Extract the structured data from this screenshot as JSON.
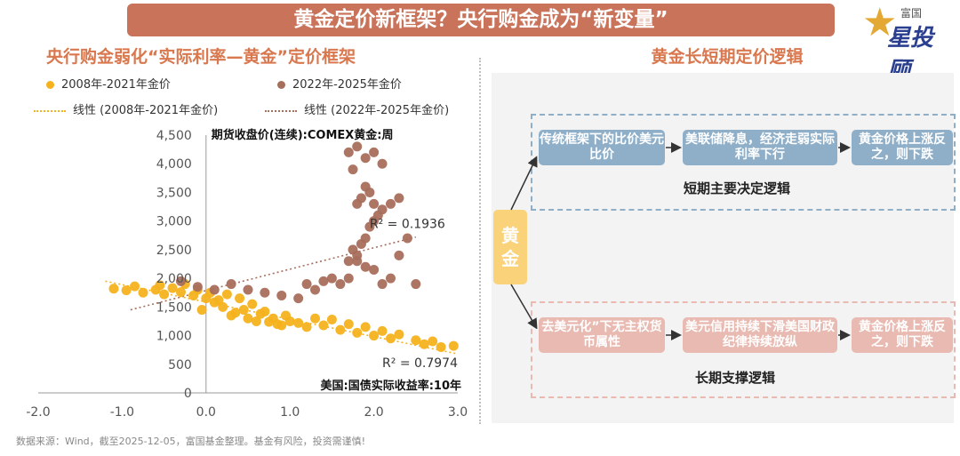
{
  "banner_title": "黄金定价新框架？央行购金成为“新变量”",
  "logo": {
    "line1": "富国",
    "line2": "星投顾"
  },
  "left_title": "央行购金弱化“实际利率—黄金”定价框架",
  "legend": {
    "series1": "2008年-2021年金价",
    "series2": "2022年-2025年金价",
    "trend1": "线性 (2008年-2021年金价)",
    "trend2": "线性 (2022年-2025年金价)"
  },
  "colors": {
    "series1": "#f6b21d",
    "series2": "#a86e5c",
    "banner": "#c8735a",
    "blue_box": "#8fafc9",
    "pink_box": "#e8bab1"
  },
  "chart_data": {
    "type": "scatter",
    "xlabel": "美国:国债实际收益率:10年",
    "ylabel": "期货收盘价(连续):COMEX黄金:周",
    "xlim": [
      -2.0,
      3.0
    ],
    "ylim": [
      0,
      4500
    ],
    "x_ticks": [
      -2.0,
      -1.0,
      0.0,
      1.0,
      2.0,
      3.0
    ],
    "x_tick_labels": [
      "-2.0",
      "-1.0",
      "0.0",
      "1.0",
      "2.0",
      "3.0"
    ],
    "y_ticks": [
      0,
      500,
      1000,
      1500,
      2000,
      2500,
      3000,
      3500,
      4000,
      4500
    ],
    "y_tick_labels": [
      "0",
      "500",
      "1,000",
      "1,500",
      "2,000",
      "2,500",
      "3,000",
      "3,500",
      "4,000",
      "4,500"
    ],
    "series": [
      {
        "name": "2008年-2021年金价",
        "color": "#f6b21d",
        "x": [
          -1.1,
          -0.95,
          -0.85,
          -0.75,
          -0.6,
          -0.55,
          -0.5,
          -0.4,
          -0.3,
          -0.25,
          -0.15,
          -0.1,
          0.0,
          0.05,
          0.1,
          0.2,
          0.25,
          0.35,
          0.4,
          0.5,
          0.55,
          0.6,
          0.7,
          0.8,
          0.85,
          0.95,
          1.0,
          1.1,
          1.2,
          1.3,
          1.4,
          1.5,
          1.6,
          1.7,
          1.8,
          1.9,
          2.0,
          2.1,
          2.2,
          2.3,
          2.5,
          2.6,
          2.7,
          2.8,
          2.95,
          0.3,
          0.45,
          0.65,
          0.75,
          -0.05,
          0.15,
          0.9
        ],
        "y": [
          1820,
          1790,
          1860,
          1750,
          1800,
          1880,
          1720,
          1830,
          1760,
          1900,
          1700,
          1800,
          1650,
          1750,
          1580,
          1500,
          1720,
          1400,
          1650,
          1300,
          1550,
          1250,
          1420,
          1300,
          1200,
          1350,
          1250,
          1220,
          1150,
          1300,
          1180,
          1280,
          1100,
          1200,
          1050,
          1150,
          1000,
          1080,
          950,
          1020,
          920,
          850,
          900,
          800,
          820,
          1350,
          1450,
          1380,
          1240,
          1450,
          1620,
          1180
        ],
        "trend_r2": "R² = 0.7974"
      },
      {
        "name": "2022年-2025年金价",
        "color": "#a86e5c",
        "x": [
          -0.3,
          -0.1,
          0.1,
          0.3,
          0.5,
          0.7,
          0.9,
          1.1,
          1.2,
          1.3,
          1.4,
          1.5,
          1.6,
          1.7,
          1.8,
          1.9,
          2.0,
          2.1,
          2.2,
          2.3,
          2.4,
          2.5,
          1.7,
          1.75,
          1.8,
          1.85,
          1.9,
          1.95,
          2.0,
          2.05,
          1.8,
          1.85,
          1.9,
          1.95,
          2.0,
          2.1,
          2.2,
          2.3,
          2.0,
          2.1,
          1.8,
          1.9,
          1.75,
          1.7
        ],
        "y": [
          1950,
          1850,
          1800,
          1900,
          1800,
          1750,
          1700,
          1650,
          1900,
          1800,
          1950,
          2000,
          1900,
          2000,
          2300,
          2200,
          2150,
          1900,
          2000,
          2400,
          2700,
          1900,
          2300,
          2500,
          2400,
          2600,
          2700,
          2900,
          3000,
          3100,
          3300,
          3400,
          3600,
          3500,
          3300,
          3200,
          3300,
          3400,
          4200,
          4000,
          4300,
          4100,
          3900,
          4200
        ],
        "trend_r2": "R² = 0.1936"
      }
    ],
    "trendlines": [
      {
        "series": "2008年-2021年金价",
        "x": [
          -1.2,
          3.0
        ],
        "y": [
          1950,
          680
        ]
      },
      {
        "series": "2022年-2025年金价",
        "x": [
          -0.9,
          2.5
        ],
        "y": [
          1450,
          2720
        ]
      }
    ]
  },
  "right": {
    "title": "黄金长短期定价逻辑",
    "gold_label": "黄金",
    "short_term": {
      "boxes": [
        "传统框架下的比价美元比价",
        "美联储降息，经济走弱实际利率下行",
        "黄金价格上涨反之，则下跌"
      ],
      "label": "短期主要决定逻辑"
    },
    "long_term": {
      "boxes": [
        "去美元化”下无主权货币属性",
        "美元信用持续下滑美国财政纪律持续放纵",
        "黄金价格上涨反之，则下跌"
      ],
      "label": "长期支撑逻辑"
    }
  },
  "footer": "数据来源：Wind，截至2025-12-05，富国基金整理。基金有风险，投资需谨慎!"
}
